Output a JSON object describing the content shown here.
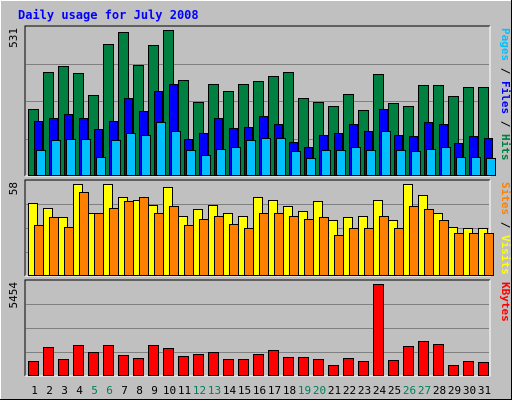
{
  "chart_data": {
    "type": "bar",
    "title": "Daily usage for July 2008",
    "categories": [
      "1",
      "2",
      "3",
      "4",
      "5",
      "6",
      "7",
      "8",
      "9",
      "10",
      "11",
      "12",
      "13",
      "14",
      "15",
      "16",
      "17",
      "18",
      "19",
      "20",
      "21",
      "22",
      "23",
      "24",
      "25",
      "26",
      "27",
      "28",
      "29",
      "30",
      "31"
    ],
    "weekend_days": [
      "5",
      "6",
      "12",
      "13",
      "19",
      "20",
      "26",
      "27"
    ],
    "colors": {
      "hits": "#008040",
      "files": "#0000ff",
      "pages": "#00c0ff",
      "visits": "#ffff00",
      "sites": "#ff8000",
      "kbytes": "#ff0000",
      "title": "#0000ff",
      "weekday_label": "#000000",
      "weekend_label": "#00805c"
    },
    "panels": [
      {
        "id": "top",
        "max_label": "531",
        "ylim": [
          0,
          531
        ],
        "legend": [
          {
            "key": "hits",
            "text": "Hits"
          },
          {
            "key": "files",
            "text": "Files"
          },
          {
            "key": "pages",
            "text": "Pages"
          }
        ],
        "series": [
          {
            "name": "Hits",
            "color_key": "hits",
            "values": [
              245,
              380,
              400,
              375,
              295,
              480,
              525,
              405,
              475,
              531,
              350,
              270,
              335,
              310,
              335,
              345,
              365,
              380,
              285,
              270,
              255,
              300,
              240,
              370,
              265,
              255,
              330,
              330,
              290,
              325,
              325
            ]
          },
          {
            "name": "Files",
            "color_key": "files",
            "values": [
              200,
              210,
              225,
              210,
              170,
              200,
              285,
              235,
              310,
              335,
              135,
              155,
              210,
              175,
              180,
              220,
              190,
              125,
              105,
              150,
              155,
              190,
              165,
              245,
              150,
              145,
              195,
              190,
              120,
              145,
              140
            ]
          },
          {
            "name": "Pages",
            "color_key": "pages",
            "values": [
              95,
              130,
              135,
              135,
              70,
              130,
              155,
              150,
              195,
              165,
              95,
              75,
              100,
              105,
              130,
              140,
              140,
              90,
              65,
              95,
              95,
              105,
              95,
              165,
              95,
              90,
              100,
              105,
              70,
              70,
              65
            ]
          }
        ]
      },
      {
        "id": "middle",
        "max_label": "58",
        "ylim": [
          0,
          58
        ],
        "legend": [
          {
            "key": "visits",
            "text": "Visits"
          },
          {
            "key": "sites",
            "text": "Sites"
          }
        ],
        "series": [
          {
            "name": "Visits",
            "color_key": "visits",
            "values": [
              46,
              43,
              37,
              58,
              40,
              58,
              50,
              48,
              45,
              56,
              38,
              42,
              45,
              40,
              38,
              50,
              48,
              44,
              41,
              47,
              35,
              37,
              38,
              48,
              35,
              58,
              51,
              40,
              31,
              30,
              30
            ]
          },
          {
            "name": "Sites",
            "color_key": "sites",
            "values": [
              32,
              37,
              31,
              53,
              40,
              43,
              47,
              50,
              40,
              44,
              32,
              36,
              38,
              33,
              30,
              40,
              40,
              38,
              36,
              37,
              26,
              30,
              30,
              38,
              30,
              44,
              42,
              35,
              27,
              27,
              27
            ]
          }
        ]
      },
      {
        "id": "bottom",
        "max_label": "5454",
        "ylim": [
          0,
          5454
        ],
        "legend": [
          {
            "key": "kbytes",
            "text": "KBytes"
          }
        ],
        "series": [
          {
            "name": "KBytes",
            "color_key": "kbytes",
            "values": [
              860,
              1740,
              1030,
              1850,
              1450,
              1820,
              1230,
              1070,
              1850,
              1640,
              1160,
              1310,
              1450,
              1000,
              990,
              1330,
              1530,
              1140,
              1110,
              1000,
              680,
              1090,
              900,
              5454,
              950,
              1750,
              2090,
              1900,
              640,
              880,
              850
            ]
          }
        ]
      }
    ]
  }
}
